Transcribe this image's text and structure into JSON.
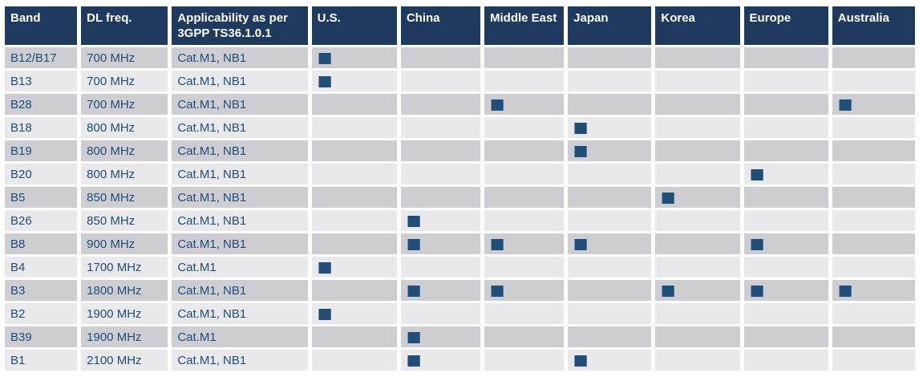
{
  "table": {
    "columns": [
      "Band",
      "DL freq.",
      "Applicability as per 3GPP TS36.1.0.1",
      "U.S.",
      "China",
      "Middle East",
      "Japan",
      "Korea",
      "Europe",
      "Australia"
    ],
    "regions": [
      "U.S.",
      "China",
      "Middle East",
      "Japan",
      "Korea",
      "Europe",
      "Australia"
    ],
    "marker_glyph": "filled-square",
    "rows": [
      {
        "band": "B12/B17",
        "dl_freq": "700 MHz",
        "applicability": "Cat.M1, NB1",
        "regions": [
          "U.S."
        ]
      },
      {
        "band": "B13",
        "dl_freq": "700 MHz",
        "applicability": "Cat.M1, NB1",
        "regions": [
          "U.S."
        ]
      },
      {
        "band": "B28",
        "dl_freq": "700 MHz",
        "applicability": "Cat.M1, NB1",
        "regions": [
          "Middle East",
          "Australia"
        ]
      },
      {
        "band": "B18",
        "dl_freq": "800 MHz",
        "applicability": "Cat.M1, NB1",
        "regions": [
          "Japan"
        ]
      },
      {
        "band": "B19",
        "dl_freq": "800 MHz",
        "applicability": "Cat.M1, NB1",
        "regions": [
          "Japan"
        ]
      },
      {
        "band": "B20",
        "dl_freq": "800 MHz",
        "applicability": "Cat.M1, NB1",
        "regions": [
          "Europe"
        ]
      },
      {
        "band": "B5",
        "dl_freq": "850 MHz",
        "applicability": "Cat.M1, NB1",
        "regions": [
          "Korea"
        ]
      },
      {
        "band": "B26",
        "dl_freq": "850 MHz",
        "applicability": "Cat.M1, NB1",
        "regions": [
          "China"
        ]
      },
      {
        "band": "B8",
        "dl_freq": "900 MHz",
        "applicability": "Cat.M1, NB1",
        "regions": [
          "China",
          "Middle East",
          "Japan",
          "Europe"
        ]
      },
      {
        "band": "B4",
        "dl_freq": "1700 MHz",
        "applicability": "Cat.M1",
        "regions": [
          "U.S."
        ]
      },
      {
        "band": "B3",
        "dl_freq": "1800 MHz",
        "applicability": "Cat.M1, NB1",
        "regions": [
          "China",
          "Middle East",
          "Korea",
          "Europe",
          "Australia"
        ]
      },
      {
        "band": "B2",
        "dl_freq": "1900 MHz",
        "applicability": "Cat.M1, NB1",
        "regions": [
          "U.S."
        ]
      },
      {
        "band": "B39",
        "dl_freq": "1900 MHz",
        "applicability": "Cat.M1",
        "regions": [
          "China"
        ]
      },
      {
        "band": "B1",
        "dl_freq": "2100 MHz",
        "applicability": "Cat.M1, NB1",
        "regions": [
          "China",
          "Japan"
        ]
      }
    ],
    "colors": {
      "header_bg": "#1f3a5f",
      "header_text": "#ffffff",
      "row_odd_bg": "#cdcdd2",
      "row_even_bg": "#e9e9eb",
      "body_text": "#1f4e79",
      "marker": "#1f4e79"
    }
  }
}
